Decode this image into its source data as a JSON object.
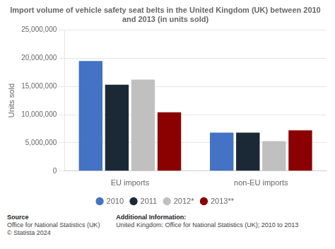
{
  "chart_data": {
    "type": "bar",
    "title": [
      "Import volume of vehicle safety seat belts in the United Kingdom (UK) between 2010",
      "and 2013 (in units sold)"
    ],
    "ylabel": "Units sold",
    "categories": [
      "EU imports",
      "non-EU imports"
    ],
    "series": [
      {
        "name": "2010",
        "color": "#4472C4",
        "values": [
          19500000,
          6800000
        ]
      },
      {
        "name": "2011",
        "color": "#1B2936",
        "values": [
          15300000,
          6800000
        ]
      },
      {
        "name": "2012*",
        "color": "#C0C0C0",
        "values": [
          16200000,
          5300000
        ]
      },
      {
        "name": "2013**",
        "color": "#8B0000",
        "values": [
          10400000,
          7200000
        ]
      }
    ],
    "ylim": [
      0,
      25000000
    ],
    "yticks": [
      0,
      {
        "value": 5000000,
        "label": "5,000,000"
      },
      {
        "value": 10000000,
        "label": "10,000,000"
      },
      {
        "value": 15000000,
        "label": "15,000,000"
      },
      {
        "value": 20000000,
        "label": "20,000,000"
      },
      {
        "value": 25000000,
        "label": "25,000,000"
      }
    ],
    "grid": true,
    "legend": "bottom",
    "annotations": [
      "Source",
      "Office for National Statistics (UK)\n© Statista 2024",
      "Additional Information:",
      "United Kingdom: Office for National Statistics (UK); 2010 to 2013"
    ]
  }
}
